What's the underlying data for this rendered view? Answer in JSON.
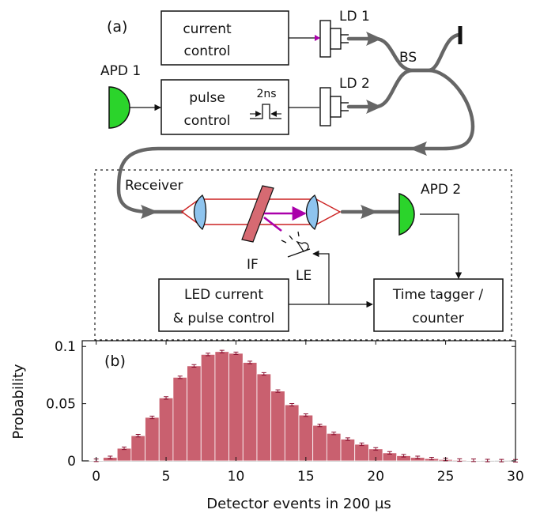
{
  "panel_a": {
    "label": "(a)",
    "current_control": [
      "current",
      "control"
    ],
    "pulse_control": [
      "pulse",
      "control"
    ],
    "pulse_width": "2ns",
    "ld1": "LD 1",
    "ld2": "LD 2",
    "bs": "BS",
    "apd1": "APD 1",
    "apd2": "APD 2",
    "receiver": "Receiver",
    "if": "IF",
    "le": "LE",
    "led_box": [
      "LED current",
      "& pulse control"
    ],
    "tagger_box": [
      "Time tagger /",
      "counter"
    ]
  },
  "colors": {
    "fiber": "#666666",
    "apd": "#2bd42b",
    "lens": "#8ec4ee",
    "filter": "#d66a72",
    "beam": "#cc2222",
    "magenta": "#aa00aa",
    "bar": "#c9606f",
    "error": "#8a1030"
  },
  "chart_data": {
    "type": "bar",
    "panel_label": "(b)",
    "xlabel": "Detector events in 200  µs",
    "ylabel": "Probability",
    "xlim": [
      -1,
      30
    ],
    "ylim": [
      0,
      0.105
    ],
    "x_ticks": [
      0,
      5,
      10,
      15,
      20,
      25,
      30
    ],
    "y_ticks": [
      0,
      0.05,
      0.1
    ],
    "y_tick_labels": [
      "0",
      "0.05",
      "0.1"
    ],
    "x": [
      0,
      1,
      2,
      3,
      4,
      5,
      6,
      7,
      8,
      9,
      10,
      11,
      12,
      13,
      14,
      15,
      16,
      17,
      18,
      19,
      20,
      21,
      22,
      23,
      24,
      25,
      26,
      27,
      28,
      29,
      30
    ],
    "values": [
      0.0005,
      0.003,
      0.011,
      0.022,
      0.038,
      0.055,
      0.073,
      0.083,
      0.093,
      0.0955,
      0.094,
      0.086,
      0.076,
      0.061,
      0.049,
      0.04,
      0.031,
      0.024,
      0.019,
      0.0145,
      0.0105,
      0.007,
      0.0045,
      0.003,
      0.002,
      0.0012,
      0.0007,
      0.0005,
      0.0003,
      0.0002,
      0.0001
    ],
    "error_bars": true
  }
}
